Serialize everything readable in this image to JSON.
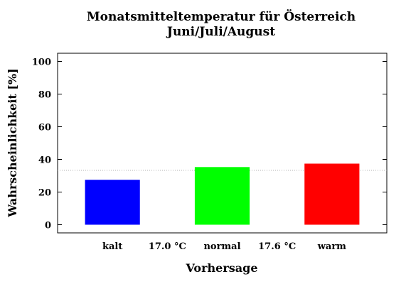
{
  "chart_data": {
    "type": "bar",
    "title_line1": "Monatsmitteltemperatur für Österreich",
    "title_line2": "Juni/Juli/August",
    "xlabel": "Vorhersage",
    "ylabel": "Wahrscheinlichkeit [%]",
    "ylim": [
      -5,
      105
    ],
    "yticks": [
      0,
      20,
      40,
      60,
      80,
      100
    ],
    "categories": [
      "kalt",
      "normal",
      "warm"
    ],
    "values": [
      27.5,
      35.3,
      37.4
    ],
    "colors": [
      "#0000ff",
      "#00ff00",
      "#ff0000"
    ],
    "separators": [
      "17.0 °C",
      "17.6 °C"
    ],
    "reference_line": 33.3,
    "reference_color": "#aaaaaa",
    "grid": false
  }
}
